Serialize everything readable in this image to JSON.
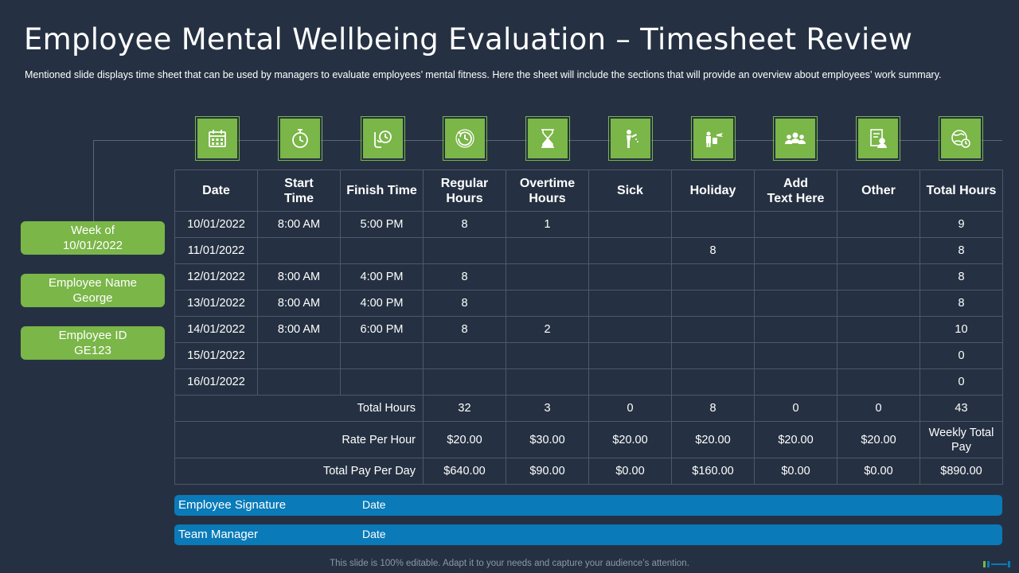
{
  "title": "Employee Mental Wellbeing Evaluation – Timesheet Review",
  "subtitle": "Mentioned slide displays time sheet that can be used by managers to evaluate  employees’ mental fitness. Here the sheet will include the sections that will provide  an overview  about employees’ work summary.",
  "info": {
    "week_label": "Week of",
    "week_value": "10/01/2022",
    "name_label": "Employee Name",
    "name_value": "George",
    "id_label": "Employee ID",
    "id_value": "GE123"
  },
  "icons": [
    "calendar-icon",
    "stopwatch-icon",
    "clock-hand-icon",
    "history-icon",
    "hourglass-icon",
    "sick-person-icon",
    "vacation-icon",
    "team-icon",
    "document-person-icon",
    "global-clock-icon"
  ],
  "table": {
    "headers": {
      "date": "Date",
      "start_1": "Start",
      "start_2": "Time",
      "finish": "Finish Time",
      "regular_1": "Regular",
      "regular_2": "Hours",
      "overtime_1": "Overtime",
      "overtime_2": "Hours",
      "sick": "Sick",
      "holiday": "Holiday",
      "add_1": "Add",
      "add_2": "Text Here",
      "other": "Other",
      "total": "Total Hours"
    },
    "rows": [
      {
        "date": "10/01/2022",
        "start": "8:00 AM",
        "finish": "5:00 PM",
        "regular": "8",
        "overtime": "1",
        "sick": "",
        "holiday": "",
        "add": "",
        "other": "",
        "total": "9"
      },
      {
        "date": "11/01/2022",
        "start": "",
        "finish": "",
        "regular": "",
        "overtime": "",
        "sick": "",
        "holiday": "8",
        "add": "",
        "other": "",
        "total": "8"
      },
      {
        "date": "12/01/2022",
        "start": "8:00 AM",
        "finish": "4:00 PM",
        "regular": "8",
        "overtime": "",
        "sick": "",
        "holiday": "",
        "add": "",
        "other": "",
        "total": "8"
      },
      {
        "date": "13/01/2022",
        "start": "8:00 AM",
        "finish": "4:00 PM",
        "regular": "8",
        "overtime": "",
        "sick": "",
        "holiday": "",
        "add": "",
        "other": "",
        "total": "8"
      },
      {
        "date": "14/01/2022",
        "start": "8:00 AM",
        "finish": "6:00 PM",
        "regular": "8",
        "overtime": "2",
        "sick": "",
        "holiday": "",
        "add": "",
        "other": "",
        "total": "10"
      },
      {
        "date": "15/01/2022",
        "start": "",
        "finish": "",
        "regular": "",
        "overtime": "",
        "sick": "",
        "holiday": "",
        "add": "",
        "other": "",
        "total": "0"
      },
      {
        "date": "16/01/2022",
        "start": "",
        "finish": "",
        "regular": "",
        "overtime": "",
        "sick": "",
        "holiday": "",
        "add": "",
        "other": "",
        "total": "0"
      }
    ],
    "total_hours": {
      "label": "Total Hours",
      "regular": "32",
      "overtime": "3",
      "sick": "0",
      "holiday": "8",
      "add": "0",
      "other": "0",
      "total": "43"
    },
    "rate": {
      "label": "Rate Per Hour",
      "regular": "$20.00",
      "overtime": "$30.00",
      "sick": "$20.00",
      "holiday": "$20.00",
      "add": "$20.00",
      "other": "$20.00",
      "total_1": "Weekly Total",
      "total_2": "Pay"
    },
    "pay": {
      "label": "Total Pay Per Day",
      "regular": "$640.00",
      "overtime": "$90.00",
      "sick": "$0.00",
      "holiday": "$160.00",
      "add": "$0.00",
      "other": "$0.00",
      "total": "$890.00"
    }
  },
  "signatures": [
    {
      "label": "Employee Signature",
      "date": "Date"
    },
    {
      "label": "Team Manager",
      "date": "Date"
    }
  ],
  "footer": "This slide is 100% editable. Adapt it to your needs and capture your audience’s attention.",
  "colors": {
    "background": "#253142",
    "accent_green": "#7ab648",
    "accent_blue": "#0a7ab8",
    "grid": "#4d596b"
  }
}
